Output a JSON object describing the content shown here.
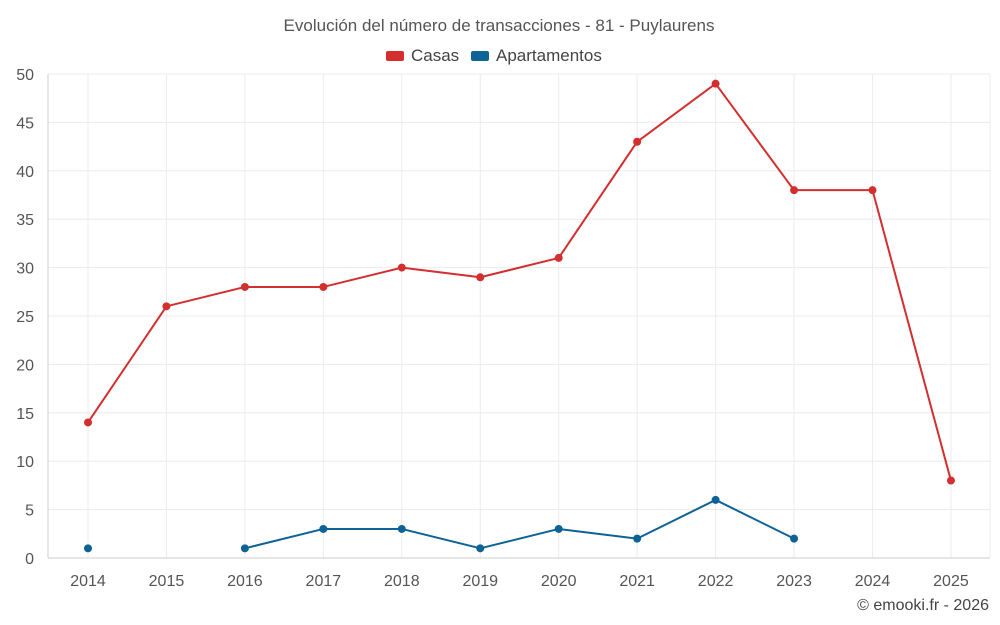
{
  "chart_data": {
    "type": "line",
    "title": "Evolución del número de transacciones - 81 - Puylaurens",
    "xlabel": "",
    "ylabel": "",
    "categories": [
      "2014",
      "2015",
      "2016",
      "2017",
      "2018",
      "2019",
      "2020",
      "2021",
      "2022",
      "2023",
      "2024",
      "2025"
    ],
    "ylim": [
      0,
      50
    ],
    "yticks": [
      0,
      5,
      10,
      15,
      20,
      25,
      30,
      35,
      40,
      45,
      50
    ],
    "grid": true,
    "legend_position": "top-center",
    "series": [
      {
        "name": "Casas",
        "color": "#d32f2f",
        "values": [
          14,
          26,
          28,
          28,
          30,
          29,
          31,
          43,
          49,
          38,
          38,
          8
        ]
      },
      {
        "name": "Apartamentos",
        "color": "#0d6296",
        "values": [
          1,
          null,
          1,
          3,
          3,
          1,
          3,
          2,
          6,
          2,
          null,
          null
        ]
      }
    ]
  },
  "credit": "© emooki.fr - 2026"
}
